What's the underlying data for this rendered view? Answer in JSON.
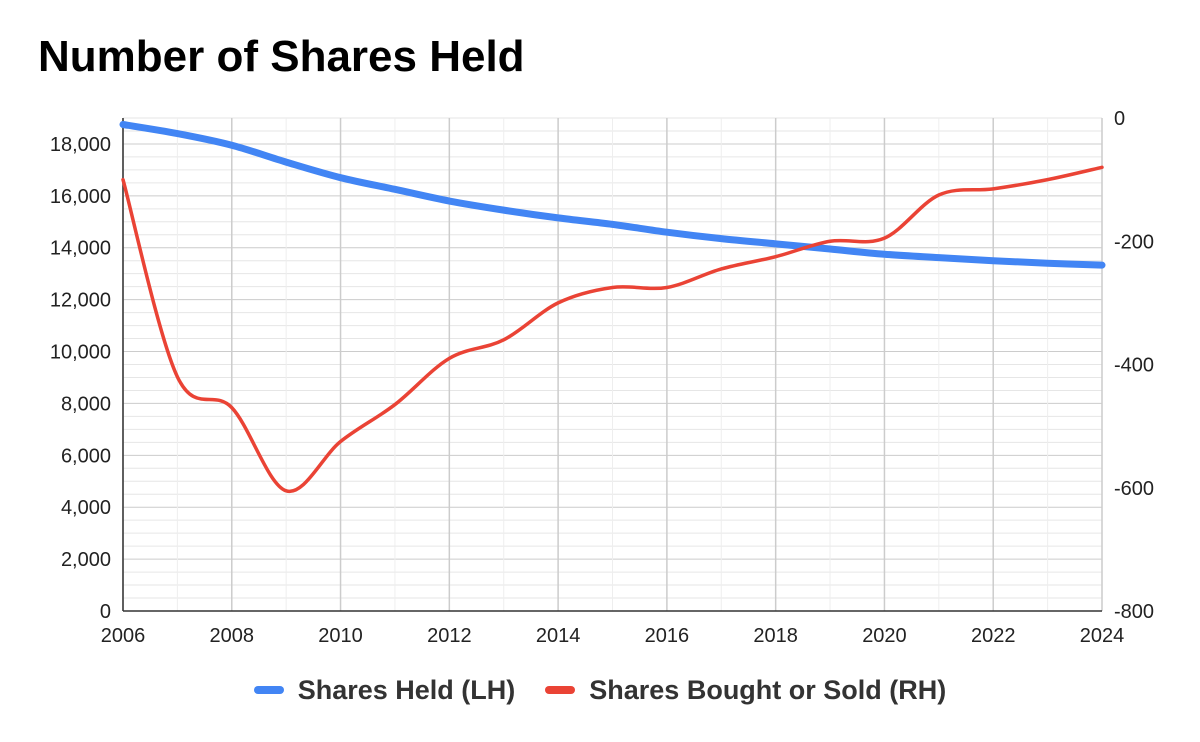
{
  "chart_data": {
    "type": "line",
    "title": "Number of Shares Held",
    "x_ticks": [
      "2006",
      "2008",
      "2010",
      "2012",
      "2014",
      "2016",
      "2018",
      "2020",
      "2022",
      "2024"
    ],
    "xlim": [
      2006,
      2024
    ],
    "left_axis": {
      "ylim": [
        0,
        19000
      ],
      "ticks": [
        "0",
        "2,000",
        "4,000",
        "6,000",
        "8,000",
        "10,000",
        "12,000",
        "14,000",
        "16,000",
        "18,000"
      ],
      "tick_values": [
        0,
        2000,
        4000,
        6000,
        8000,
        10000,
        12000,
        14000,
        16000,
        18000
      ]
    },
    "right_axis": {
      "ylim": [
        -800,
        0
      ],
      "ticks": [
        "0",
        "-200",
        "-400",
        "-600",
        "-800"
      ],
      "tick_values": [
        0,
        -200,
        -400,
        -600,
        -800
      ]
    },
    "grid": true,
    "legend_position": "bottom",
    "series": [
      {
        "name": "Shares Held (LH)",
        "axis": "left",
        "color": "#4285f4",
        "x": [
          2006,
          2007,
          2008,
          2009,
          2010,
          2011,
          2012,
          2013,
          2014,
          2015,
          2016,
          2017,
          2018,
          2019,
          2020,
          2021,
          2022,
          2023,
          2024
        ],
        "values": [
          18750,
          18400,
          17950,
          17300,
          16700,
          16250,
          15800,
          15450,
          15150,
          14900,
          14600,
          14350,
          14150,
          13950,
          13750,
          13620,
          13500,
          13400,
          13330
        ]
      },
      {
        "name": "Shares Bought or Sold (RH)",
        "axis": "right",
        "color": "#ea4335",
        "x": [
          2006,
          2007,
          2008,
          2009,
          2010,
          2011,
          2012,
          2013,
          2014,
          2015,
          2016,
          2017,
          2018,
          2019,
          2020,
          2021,
          2022,
          2023,
          2024
        ],
        "values": [
          -100,
          -420,
          -470,
          -605,
          -525,
          -465,
          -390,
          -360,
          -300,
          -275,
          -275,
          -245,
          -225,
          -200,
          -195,
          -125,
          -115,
          -100,
          -80
        ]
      }
    ]
  }
}
